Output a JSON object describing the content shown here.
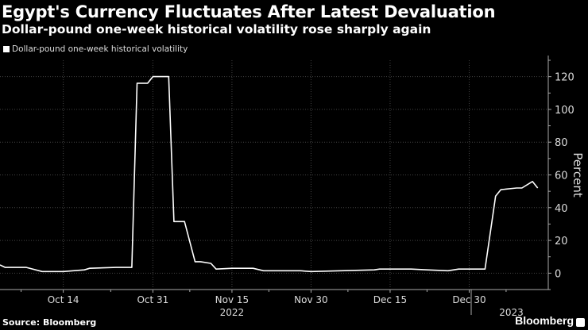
{
  "header": {
    "title": "Egypt's Currency Fluctuates After Latest Devaluation",
    "subtitle": "Dollar-pound one-week historical volatility rose sharply again"
  },
  "footer": {
    "source": "Source: Bloomberg",
    "logo": "Bloomberg"
  },
  "colors": {
    "background": "#000000",
    "line": "#ffffff",
    "grid": "#444444"
  },
  "chart_data": {
    "type": "line",
    "title": "Egypt's Currency Fluctuates After Latest Devaluation",
    "subtitle": "Dollar-pound one-week historical volatility rose sharply again",
    "ylabel": "Percent",
    "ylim": [
      -10,
      130
    ],
    "yticks": [
      0,
      20,
      40,
      60,
      80,
      100,
      120
    ],
    "xlim": [
      "2022-10-02",
      "2023-01-14"
    ],
    "xticks": [
      {
        "date": "2022-10-14",
        "label": "Oct 14"
      },
      {
        "date": "2022-10-31",
        "label": "Oct 31"
      },
      {
        "date": "2022-11-15",
        "label": "Nov 15"
      },
      {
        "date": "2022-11-30",
        "label": "Nov 30"
      },
      {
        "date": "2022-12-15",
        "label": "Dec 15"
      },
      {
        "date": "2022-12-30",
        "label": "Dec 30"
      }
    ],
    "year_labels": [
      {
        "date": "2022-11-15",
        "label": "2022"
      },
      {
        "date": "2023-01-07",
        "label": "2023"
      }
    ],
    "grid": true,
    "legend_position": "top-left",
    "series": [
      {
        "name": "Dollar-pound one-week historical volatility",
        "x": [
          "2022-10-02",
          "2022-10-03",
          "2022-10-07",
          "2022-10-10",
          "2022-10-14",
          "2022-10-18",
          "2022-10-19",
          "2022-10-24",
          "2022-10-27",
          "2022-10-28",
          "2022-10-30",
          "2022-10-31",
          "2022-11-03",
          "2022-11-04",
          "2022-11-06",
          "2022-11-08",
          "2022-11-09",
          "2022-11-11",
          "2022-11-12",
          "2022-11-15",
          "2022-11-19",
          "2022-11-21",
          "2022-11-24",
          "2022-11-28",
          "2022-11-30",
          "2022-12-12",
          "2022-12-13",
          "2022-12-19",
          "2022-12-22",
          "2022-12-26",
          "2022-12-28",
          "2022-12-30",
          "2023-01-02",
          "2023-01-04",
          "2023-01-05",
          "2023-01-08",
          "2023-01-09",
          "2023-01-11",
          "2023-01-12"
        ],
        "values": [
          5,
          3.5,
          3.5,
          1,
          1,
          2,
          3,
          3.5,
          3.5,
          116,
          116,
          120,
          120,
          31.5,
          31.5,
          7,
          7,
          6,
          2.5,
          3,
          3,
          1.5,
          1.5,
          1.5,
          1,
          2,
          2.5,
          2.5,
          2,
          1.5,
          2.5,
          2.5,
          2.5,
          47,
          51,
          52,
          52,
          56,
          52
        ]
      }
    ]
  }
}
